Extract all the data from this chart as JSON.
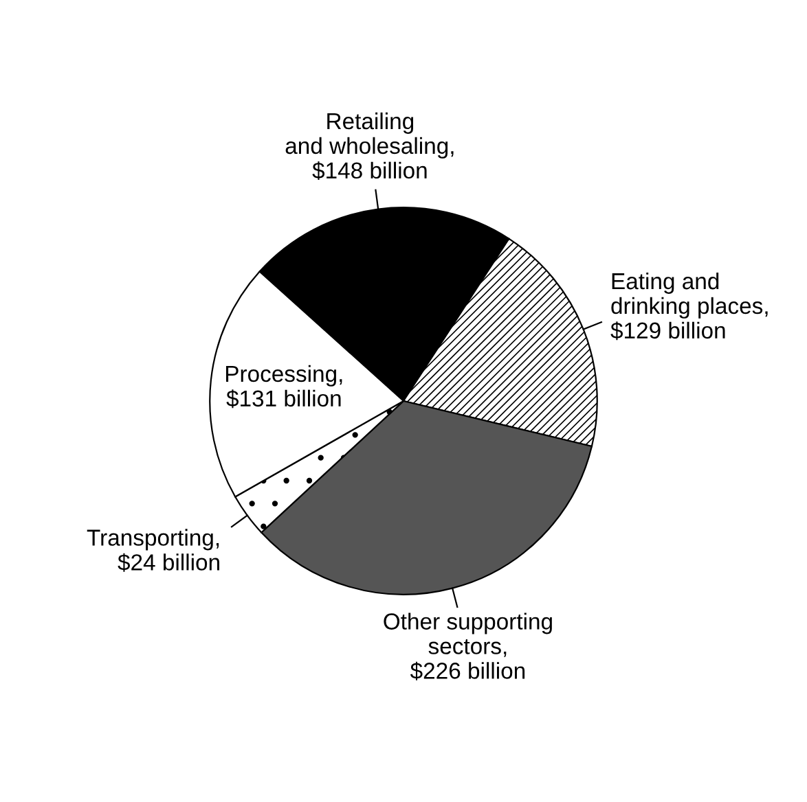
{
  "chart_data": {
    "type": "pie",
    "categories": [
      "Retailing\nand wholesaling,\n$148 billion",
      "Eating and\ndrinking places,\n$129 billion",
      "Other supporting\nsectors,\n$226 billion",
      "Transporting,\n$24 billion",
      "Processing,\n$131 billion"
    ],
    "values": [
      148,
      129,
      226,
      24,
      131
    ],
    "colors": [
      "#000000",
      "#ffffff",
      "#555555",
      "#ffffff",
      "#ffffff"
    ]
  }
}
